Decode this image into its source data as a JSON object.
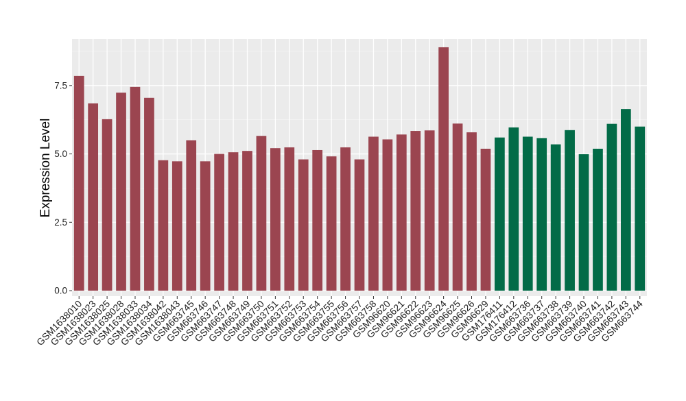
{
  "chart_data": {
    "type": "bar",
    "title": "",
    "xlabel": "",
    "ylabel": "Expression Level",
    "ylim": [
      -0.2,
      9.2
    ],
    "yticks": [
      0.0,
      2.5,
      5.0,
      7.5
    ],
    "ytick_labels": [
      "0.0",
      "2.5",
      "5.0",
      "7.5"
    ],
    "grid": true,
    "background": "#EBEBEB",
    "categories": [
      "GSM1638010",
      "GSM1638023",
      "GSM1638025",
      "GSM1638028",
      "GSM1638033",
      "GSM1638034",
      "GSM1638042",
      "GSM1638043",
      "GSM663745",
      "GSM663746",
      "GSM663747",
      "GSM663748",
      "GSM663749",
      "GSM663750",
      "GSM663751",
      "GSM663752",
      "GSM663753",
      "GSM663754",
      "GSM663755",
      "GSM663756",
      "GSM663757",
      "GSM663758",
      "GSM96620",
      "GSM96621",
      "GSM96622",
      "GSM96623",
      "GSM96624",
      "GSM96625",
      "GSM96626",
      "GSM96629",
      "GSM176411",
      "GSM176412",
      "GSM663736",
      "GSM663737",
      "GSM663738",
      "GSM663739",
      "GSM663740",
      "GSM663741",
      "GSM663742",
      "GSM663743",
      "GSM663744"
    ],
    "values": [
      7.85,
      6.85,
      6.27,
      7.24,
      7.45,
      7.05,
      4.77,
      4.73,
      5.5,
      4.73,
      5.0,
      5.06,
      5.11,
      5.66,
      5.21,
      5.24,
      4.8,
      5.14,
      4.91,
      5.24,
      4.8,
      5.63,
      5.53,
      5.71,
      5.84,
      5.86,
      8.9,
      6.11,
      5.79,
      5.19,
      5.6,
      5.97,
      5.63,
      5.58,
      5.35,
      5.87,
      4.99,
      5.19,
      6.1,
      6.64,
      6.0
    ],
    "bar_colors": [
      "#9B4550",
      "#9B4550",
      "#9B4550",
      "#9B4550",
      "#9B4550",
      "#9B4550",
      "#9B4550",
      "#9B4550",
      "#9B4550",
      "#9B4550",
      "#9B4550",
      "#9B4550",
      "#9B4550",
      "#9B4550",
      "#9B4550",
      "#9B4550",
      "#9B4550",
      "#9B4550",
      "#9B4550",
      "#9B4550",
      "#9B4550",
      "#9B4550",
      "#9B4550",
      "#9B4550",
      "#9B4550",
      "#9B4550",
      "#9B4550",
      "#9B4550",
      "#9B4550",
      "#9B4550",
      "#026B47",
      "#026B47",
      "#026B47",
      "#026B47",
      "#026B47",
      "#026B47",
      "#026B47",
      "#026B47",
      "#026B47",
      "#026B47",
      "#026B47"
    ]
  }
}
